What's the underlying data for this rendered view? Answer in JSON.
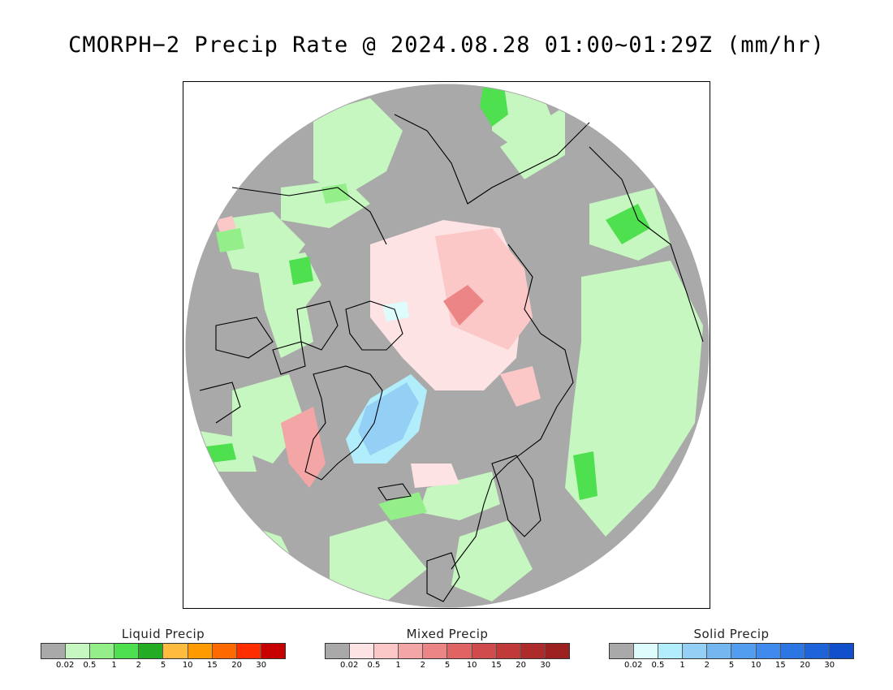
{
  "title": "CMORPH−2 Precip Rate @ 2024.08.28 01:00~01:29Z (mm/hr)",
  "map": {
    "background_color": "#a9a9a9",
    "coastline_color": "#000000"
  },
  "legends": [
    {
      "id": "liquid",
      "title": "Liquid Precip",
      "colors": [
        "#a9a9a9",
        "#c6f7c0",
        "#94ee8a",
        "#4fe04f",
        "#24ad24",
        "#ffbb3d",
        "#ff9a00",
        "#ff6a00",
        "#ff2e00",
        "#c70000"
      ],
      "ticks": [
        "0.02",
        "0.5",
        "1",
        "2",
        "5",
        "10",
        "15",
        "20",
        "30"
      ]
    },
    {
      "id": "mixed",
      "title": "Mixed Precip",
      "colors": [
        "#a9a9a9",
        "#fde3e3",
        "#fbc7c7",
        "#f4a5a5",
        "#ec8585",
        "#e06464",
        "#d04b4b",
        "#c13a3a",
        "#ad2b2b",
        "#9c2020"
      ],
      "ticks": [
        "0.02",
        "0.5",
        "1",
        "2",
        "5",
        "10",
        "15",
        "20",
        "30"
      ]
    },
    {
      "id": "solid",
      "title": "Solid Precip",
      "colors": [
        "#a9a9a9",
        "#defcfc",
        "#b1edfb",
        "#94d0f5",
        "#74b6f0",
        "#529df0",
        "#3f8aec",
        "#2c76e4",
        "#1e63da",
        "#124fcc"
      ],
      "ticks": [
        "0.02",
        "0.5",
        "1",
        "2",
        "5",
        "10",
        "15",
        "20",
        "30"
      ]
    }
  ]
}
